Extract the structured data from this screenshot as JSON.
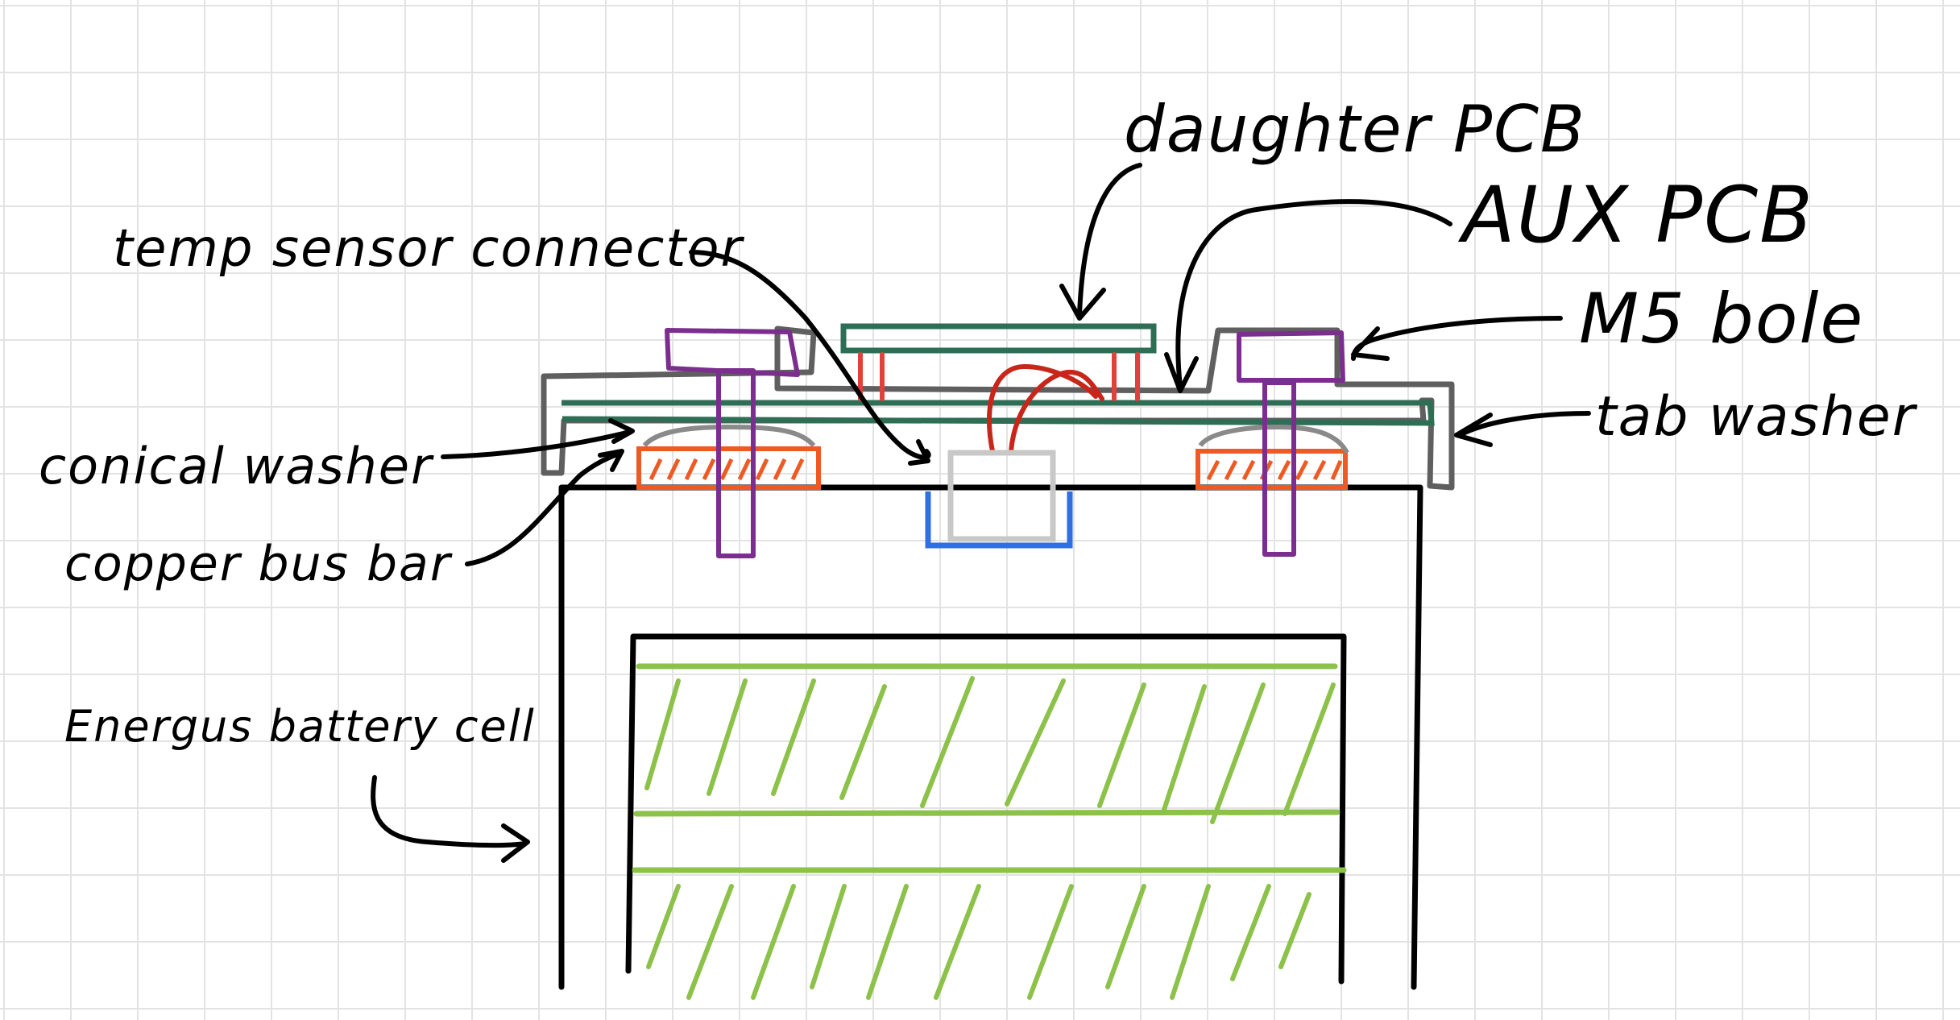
{
  "labels": {
    "daughter_pcb": "daughter PCB",
    "aux_pcb": "AUX PCB",
    "m5_bolt": "M5 bole",
    "tab_washer": "tab washer",
    "temp_sensor_connector": "temp sensor connector",
    "conical_washer": "conical washer",
    "copper_bus_bar": "copper bus bar",
    "battery_cell": "Energus battery cell"
  },
  "colors": {
    "grid": "#e3e3e3",
    "ink": "#000000",
    "tab_washer": "#5f5f5f",
    "pcb": "#2e6e55",
    "bolt": "#7b2e8e",
    "bus_bar": "#ef5a24",
    "conical_washer": "#8a8a8a",
    "pins": "#e0413c",
    "wires": "#c8261a",
    "connector": "#c8c8c8",
    "connector_base": "#2f6fe0",
    "cell_electrode": "#8cc24a"
  },
  "icons": {
    "arrows": "hand-drawn-arrow",
    "cell_fill": "diagonal-hatching"
  }
}
